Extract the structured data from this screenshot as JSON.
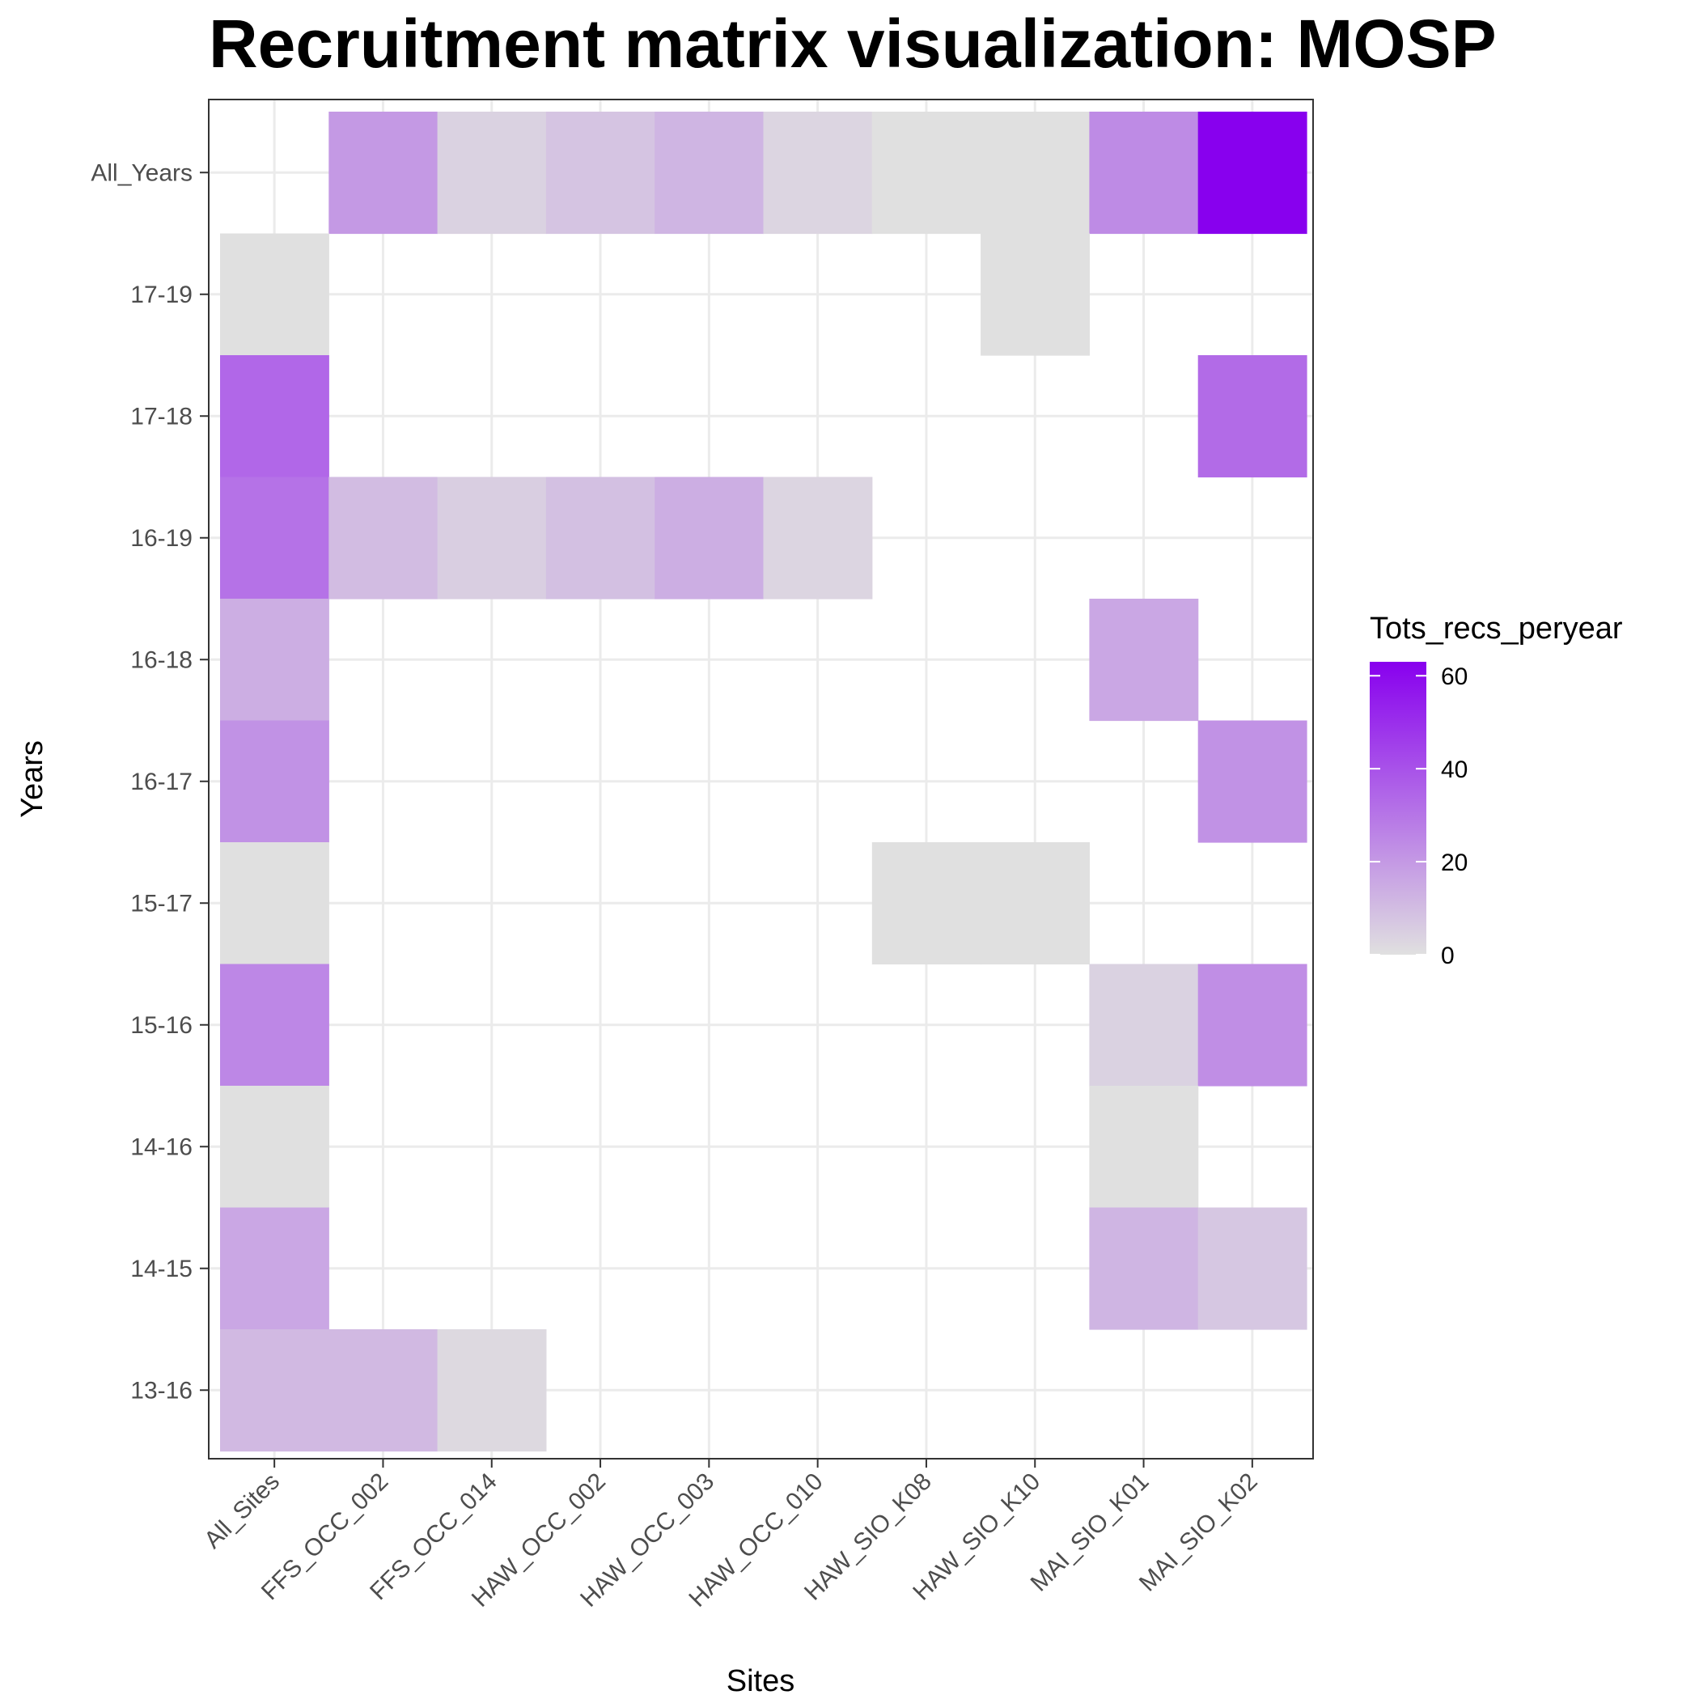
{
  "chart_data": {
    "type": "heatmap",
    "title": "Recruitment matrix visualization: MOSP",
    "xlabel": "Sites",
    "ylabel": "Years",
    "x_categories": [
      "All_Sites",
      "FFS_OCC_002",
      "FFS_OCC_014",
      "HAW_OCC_002",
      "HAW_OCC_003",
      "HAW_OCC_010",
      "HAW_SIO_K08",
      "HAW_SIO_K10",
      "MAI_SIO_K01",
      "MAI_SIO_K02"
    ],
    "y_categories": [
      "All_Years",
      "17-19",
      "17-18",
      "16-19",
      "16-18",
      "16-17",
      "15-17",
      "15-16",
      "14-16",
      "14-15",
      "13-16"
    ],
    "cells": [
      {
        "x": "FFS_OCC_002",
        "y": "All_Years",
        "value": 20
      },
      {
        "x": "FFS_OCC_014",
        "y": "All_Years",
        "value": 4
      },
      {
        "x": "HAW_OCC_002",
        "y": "All_Years",
        "value": 8
      },
      {
        "x": "HAW_OCC_003",
        "y": "All_Years",
        "value": 12
      },
      {
        "x": "HAW_OCC_010",
        "y": "All_Years",
        "value": 3
      },
      {
        "x": "HAW_SIO_K08",
        "y": "All_Years",
        "value": 0
      },
      {
        "x": "HAW_SIO_K10",
        "y": "All_Years",
        "value": 0
      },
      {
        "x": "MAI_SIO_K01",
        "y": "All_Years",
        "value": 24
      },
      {
        "x": "MAI_SIO_K02",
        "y": "All_Years",
        "value": 63
      },
      {
        "x": "All_Sites",
        "y": "17-19",
        "value": 0
      },
      {
        "x": "HAW_SIO_K10",
        "y": "17-19",
        "value": 0
      },
      {
        "x": "All_Sites",
        "y": "17-18",
        "value": 34
      },
      {
        "x": "MAI_SIO_K02",
        "y": "17-18",
        "value": 33
      },
      {
        "x": "All_Sites",
        "y": "16-19",
        "value": 31
      },
      {
        "x": "FFS_OCC_002",
        "y": "16-19",
        "value": 10
      },
      {
        "x": "FFS_OCC_014",
        "y": "16-19",
        "value": 5
      },
      {
        "x": "HAW_OCC_002",
        "y": "16-19",
        "value": 9
      },
      {
        "x": "HAW_OCC_003",
        "y": "16-19",
        "value": 14
      },
      {
        "x": "HAW_OCC_010",
        "y": "16-19",
        "value": 3
      },
      {
        "x": "All_Sites",
        "y": "16-18",
        "value": 14
      },
      {
        "x": "MAI_SIO_K01",
        "y": "16-18",
        "value": 16
      },
      {
        "x": "All_Sites",
        "y": "16-17",
        "value": 22
      },
      {
        "x": "MAI_SIO_K02",
        "y": "16-17",
        "value": 22
      },
      {
        "x": "All_Sites",
        "y": "15-17",
        "value": 0
      },
      {
        "x": "HAW_SIO_K08",
        "y": "15-17",
        "value": 0
      },
      {
        "x": "HAW_SIO_K10",
        "y": "15-17",
        "value": 0
      },
      {
        "x": "All_Sites",
        "y": "15-16",
        "value": 25
      },
      {
        "x": "MAI_SIO_K01",
        "y": "15-16",
        "value": 4
      },
      {
        "x": "MAI_SIO_K02",
        "y": "15-16",
        "value": 23
      },
      {
        "x": "All_Sites",
        "y": "14-16",
        "value": 0
      },
      {
        "x": "MAI_SIO_K01",
        "y": "14-16",
        "value": 0
      },
      {
        "x": "All_Sites",
        "y": "14-15",
        "value": 16
      },
      {
        "x": "MAI_SIO_K01",
        "y": "14-15",
        "value": 12
      },
      {
        "x": "MAI_SIO_K02",
        "y": "14-15",
        "value": 7
      },
      {
        "x": "All_Sites",
        "y": "13-16",
        "value": 11
      },
      {
        "x": "FFS_OCC_002",
        "y": "13-16",
        "value": 11
      },
      {
        "x": "FFS_OCC_014",
        "y": "13-16",
        "value": 2
      }
    ],
    "legend": {
      "title": "Tots_recs_peryear",
      "min": 0,
      "max": 63,
      "ticks": [
        0,
        20,
        40,
        60
      ],
      "placement": "right"
    },
    "colors": {
      "low": "#e0e0e0",
      "high": "#8800ee"
    },
    "grid": true
  }
}
